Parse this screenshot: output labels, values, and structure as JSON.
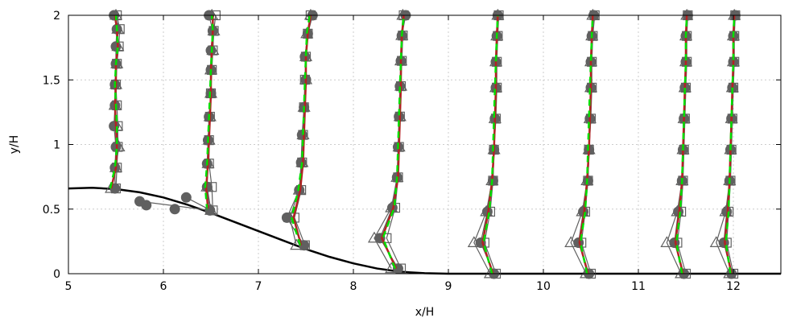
{
  "chart_data": {
    "type": "line",
    "xlabel": "x/H",
    "ylabel": "y/H",
    "xlim": [
      5,
      12.5
    ],
    "ylim": [
      0,
      2
    ],
    "xticks": [
      "5",
      "6",
      "7",
      "8",
      "9",
      "10",
      "11",
      "12"
    ],
    "yticks": [
      "0",
      "0.5",
      "1",
      "1.5",
      "2"
    ],
    "grid": true,
    "colors": {
      "hill": "#000000",
      "markers": "#606060",
      "red_line": "#b22222",
      "green_line": "#00e000",
      "grid": "#cccccc"
    },
    "hill": {
      "x": [
        5.0,
        5.25,
        5.5,
        5.75,
        6.0,
        6.25,
        6.5,
        6.75,
        7.0,
        7.25,
        7.5,
        7.75,
        8.0,
        8.25,
        8.5,
        8.75,
        9.0,
        9.25,
        12.5
      ],
      "y": [
        0.66,
        0.665,
        0.655,
        0.63,
        0.59,
        0.535,
        0.47,
        0.4,
        0.33,
        0.26,
        0.19,
        0.13,
        0.08,
        0.04,
        0.015,
        0.004,
        0.0,
        0.0,
        0.0
      ]
    },
    "profiles": [
      {
        "base": 5.5,
        "y_start": 0.66,
        "red_x": [
          5.45,
          5.5,
          5.51,
          5.5,
          5.49,
          5.5,
          5.5,
          5.52,
          5.51,
          5.49
        ],
        "green_x": [
          5.44,
          5.49,
          5.51,
          5.51,
          5.5,
          5.49,
          5.5,
          5.52,
          5.51,
          5.5
        ],
        "circles_x": [
          5.49,
          5.49,
          5.5,
          5.48,
          5.49,
          5.49,
          5.5,
          5.5,
          5.51,
          5.48
        ],
        "squares_x": [
          5.5,
          5.51,
          5.52,
          5.52,
          5.51,
          5.5,
          5.51,
          5.53,
          5.54,
          5.51
        ],
        "triangles_x": [
          5.45,
          5.5,
          5.53,
          5.51,
          5.49,
          5.5,
          5.51,
          5.52,
          5.52,
          5.5
        ]
      },
      {
        "base": 6.5,
        "y_start": 0.49,
        "red_x": [
          6.47,
          6.45,
          6.47,
          6.48,
          6.49,
          6.5,
          6.5,
          6.51,
          6.52,
          6.52
        ],
        "green_x": [
          6.46,
          6.44,
          6.46,
          6.47,
          6.48,
          6.49,
          6.5,
          6.51,
          6.52,
          6.51
        ],
        "circles_x": [
          6.49,
          6.46,
          6.46,
          6.47,
          6.48,
          6.5,
          6.5,
          6.5,
          6.52,
          6.48
        ],
        "squares_x": [
          6.52,
          6.51,
          6.48,
          6.48,
          6.49,
          6.5,
          6.51,
          6.52,
          6.53,
          6.55
        ],
        "triangles_x": [
          6.5,
          6.46,
          6.47,
          6.48,
          6.49,
          6.5,
          6.5,
          6.52,
          6.53,
          6.51
        ]
      },
      {
        "base": 7.5,
        "y_start": 0.22,
        "red_x": [
          7.45,
          7.37,
          7.44,
          7.47,
          7.48,
          7.49,
          7.5,
          7.5,
          7.52,
          7.55
        ],
        "green_x": [
          7.44,
          7.35,
          7.42,
          7.46,
          7.47,
          7.48,
          7.49,
          7.5,
          7.51,
          7.54
        ],
        "circles_x": [
          7.48,
          7.3,
          7.43,
          7.45,
          7.46,
          7.48,
          7.5,
          7.49,
          7.52,
          7.57
        ],
        "squares_x": [
          7.49,
          7.38,
          7.45,
          7.46,
          7.47,
          7.48,
          7.49,
          7.5,
          7.52,
          7.55
        ],
        "triangles_x": [
          7.4,
          7.33,
          7.43,
          7.46,
          7.47,
          7.48,
          7.5,
          7.5,
          7.51,
          7.55
        ]
      },
      {
        "base": 8.5,
        "y_start": 0.04,
        "red_x": [
          8.45,
          8.3,
          8.42,
          8.47,
          8.48,
          8.49,
          8.5,
          8.5,
          8.51,
          8.53
        ],
        "green_x": [
          8.44,
          8.31,
          8.43,
          8.46,
          8.47,
          8.48,
          8.49,
          8.5,
          8.51,
          8.53
        ],
        "circles_x": [
          8.47,
          8.28,
          8.41,
          8.46,
          8.47,
          8.48,
          8.49,
          8.5,
          8.51,
          8.55
        ],
        "squares_x": [
          8.5,
          8.35,
          8.44,
          8.47,
          8.48,
          8.49,
          8.5,
          8.51,
          8.52,
          8.53
        ],
        "triangles_x": [
          8.4,
          8.22,
          8.4,
          8.46,
          8.48,
          8.49,
          8.5,
          8.5,
          8.51,
          8.52
        ]
      },
      {
        "base": 9.5,
        "y_start": 0.0,
        "red_x": [
          9.47,
          9.36,
          9.42,
          9.46,
          9.48,
          9.49,
          9.5,
          9.5,
          9.51,
          9.52
        ],
        "green_x": [
          9.46,
          9.37,
          9.43,
          9.46,
          9.47,
          9.48,
          9.49,
          9.5,
          9.51,
          9.52
        ],
        "circles_x": [
          9.48,
          9.34,
          9.41,
          9.47,
          9.48,
          9.49,
          9.5,
          9.5,
          9.51,
          9.52
        ],
        "squares_x": [
          9.5,
          9.38,
          9.44,
          9.47,
          9.48,
          9.5,
          9.51,
          9.51,
          9.52,
          9.53
        ],
        "triangles_x": [
          9.44,
          9.27,
          9.4,
          9.46,
          9.48,
          9.49,
          9.5,
          9.5,
          9.51,
          9.52
        ]
      },
      {
        "base": 10.5,
        "y_start": 0.0,
        "red_x": [
          10.47,
          10.38,
          10.43,
          10.46,
          10.48,
          10.49,
          10.5,
          10.5,
          10.51,
          10.52
        ],
        "green_x": [
          10.46,
          10.39,
          10.44,
          10.46,
          10.47,
          10.48,
          10.49,
          10.5,
          10.51,
          10.52
        ],
        "circles_x": [
          10.48,
          10.37,
          10.42,
          10.47,
          10.48,
          10.49,
          10.5,
          10.5,
          10.51,
          10.53
        ],
        "squares_x": [
          10.5,
          10.4,
          10.44,
          10.47,
          10.48,
          10.5,
          10.51,
          10.51,
          10.52,
          10.54
        ],
        "triangles_x": [
          10.45,
          10.29,
          10.41,
          10.46,
          10.48,
          10.49,
          10.5,
          10.5,
          10.51,
          10.52
        ]
      },
      {
        "base": 11.5,
        "y_start": 0.0,
        "red_x": [
          11.47,
          11.39,
          11.43,
          11.46,
          11.47,
          11.48,
          11.49,
          11.5,
          11.5,
          11.51
        ],
        "green_x": [
          11.46,
          11.4,
          11.44,
          11.46,
          11.47,
          11.48,
          11.49,
          11.5,
          11.5,
          11.51
        ],
        "circles_x": [
          11.48,
          11.38,
          11.42,
          11.46,
          11.47,
          11.48,
          11.49,
          11.5,
          11.5,
          11.52
        ],
        "squares_x": [
          11.5,
          11.41,
          11.45,
          11.47,
          11.48,
          11.49,
          11.5,
          11.51,
          11.51,
          11.52
        ],
        "triangles_x": [
          11.45,
          11.3,
          11.41,
          11.46,
          11.47,
          11.48,
          11.49,
          11.5,
          11.5,
          11.51
        ]
      },
      {
        "base": 12.0,
        "y_start": 0.0,
        "red_x": [
          11.98,
          11.91,
          11.94,
          11.96,
          11.97,
          11.98,
          11.99,
          12.0,
          12.0,
          12.01
        ],
        "green_x": [
          11.97,
          11.92,
          11.95,
          11.96,
          11.97,
          11.98,
          11.99,
          12.0,
          12.0,
          12.01
        ],
        "circles_x": [
          11.98,
          11.9,
          11.93,
          11.96,
          11.97,
          11.98,
          11.99,
          12.0,
          12.0,
          12.02
        ],
        "squares_x": [
          12.0,
          11.93,
          11.95,
          11.97,
          11.98,
          11.99,
          12.0,
          12.01,
          12.01,
          12.02
        ],
        "triangles_x": [
          11.96,
          11.82,
          11.92,
          11.96,
          11.97,
          11.98,
          11.99,
          12.0,
          12.0,
          12.01
        ]
      }
    ],
    "profile_y_fracs": [
      0.0,
      0.12,
      0.24,
      0.36,
      0.48,
      0.6,
      0.72,
      0.82,
      0.92,
      1.0
    ],
    "reversal_points": {
      "x": [
        5.75,
        5.82,
        6.12,
        6.24
      ],
      "y": [
        0.56,
        0.53,
        0.5,
        0.59
      ]
    }
  }
}
